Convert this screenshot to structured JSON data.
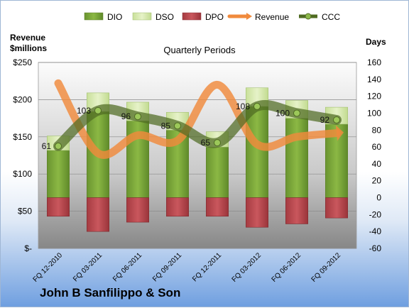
{
  "chart_data": {
    "type": "bar",
    "title": "Quarterly Periods",
    "company": "John B Sanfilippo & Son",
    "left_axis_label": [
      "Revenue",
      "$millions"
    ],
    "right_axis_label": "Days",
    "left_ticks": [
      "$-",
      "$50",
      "$100",
      "$150",
      "$200",
      "$250"
    ],
    "left_ylim": [
      0,
      250
    ],
    "right_ticks": [
      "-60",
      "-40",
      "-20",
      "0",
      "20",
      "40",
      "60",
      "80",
      "100",
      "120",
      "140",
      "160"
    ],
    "right_ylim": [
      -60,
      160
    ],
    "categories": [
      "FQ 12-2010",
      "FQ 03-2011",
      "FQ 06-2011",
      "FQ 09-2011",
      "FQ 12-2011",
      "FQ 03-2012",
      "FQ 06-2012",
      "FQ 09-2012"
    ],
    "legend": [
      "DIO",
      "DSO",
      "DPO",
      "Revenue",
      "CCC"
    ],
    "series": [
      {
        "name": "DIO",
        "axis": "right",
        "values": [
          56,
          102,
          91,
          80,
          60,
          108,
          94,
          87
        ]
      },
      {
        "name": "DSO",
        "axis": "right",
        "values": [
          17,
          22,
          22,
          21,
          18,
          22,
          21,
          20
        ]
      },
      {
        "name": "DPO",
        "axis": "right",
        "values": [
          -22,
          -40,
          -29,
          -22,
          -22,
          -35,
          -31,
          -24
        ]
      },
      {
        "name": "Revenue",
        "axis": "left",
        "values": [
          222,
          128,
          152,
          145,
          220,
          140,
          150,
          155
        ]
      },
      {
        "name": "CCC",
        "axis": "right",
        "values": [
          61,
          103,
          96,
          85,
          65,
          108,
          100,
          92
        ]
      }
    ],
    "ccc_labels": [
      "61",
      "103",
      "96",
      "85",
      "65",
      "108",
      "100",
      "92"
    ],
    "colors": {
      "DIO": "#7ea83a",
      "DSO": "#d7e8b0",
      "DPO": "#b8464c",
      "Revenue": "#f08a3c",
      "CCC": "#4f6b22",
      "plot_top": "#fbfbfb",
      "plot_bottom": "#8a8a8a",
      "frame_bottom": "#6f9fe0"
    },
    "grid": true,
    "legend_position": "top"
  }
}
